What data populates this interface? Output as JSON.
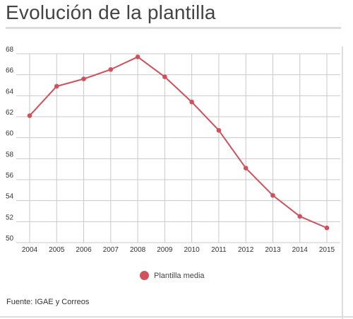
{
  "title": "Evolución de la plantilla",
  "source": "Fuente: IGAE y Correos",
  "colors": {
    "series": "#d0505b",
    "grid": "#c9c9c9"
  },
  "chart_data": {
    "type": "line",
    "title": "Evolución de la plantilla",
    "xlabel": "",
    "ylabel": "",
    "categories": [
      "2004",
      "2005",
      "2006",
      "2007",
      "2008",
      "2009",
      "2010",
      "2011",
      "2012",
      "2013",
      "2014",
      "2015"
    ],
    "series": [
      {
        "name": "Plantilla media",
        "values": [
          62.1,
          64.9,
          65.6,
          66.5,
          67.7,
          65.8,
          63.4,
          60.7,
          57.1,
          54.5,
          52.5,
          51.4
        ]
      }
    ],
    "ylim": [
      50,
      68
    ],
    "yticks": [
      50,
      52,
      54,
      56,
      58,
      60,
      62,
      64,
      66,
      68
    ],
    "grid": true,
    "legend": "bottom-center"
  }
}
